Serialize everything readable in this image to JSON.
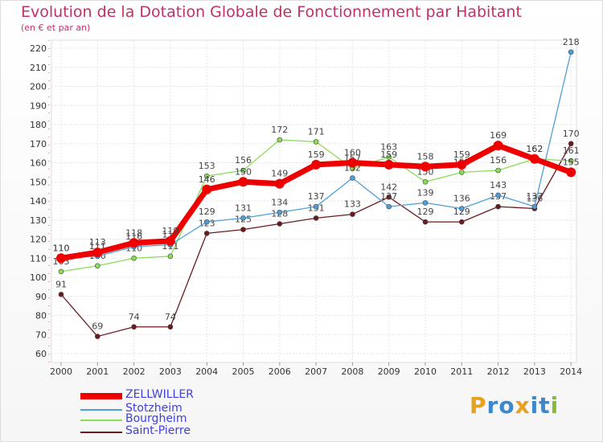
{
  "chart_data": {
    "type": "line",
    "title": "Evolution de la Dotation Globale de Fonctionnement par Habitant",
    "subtitle": "(en € et par an)",
    "xlabel": "",
    "ylabel": "",
    "ylim": [
      60,
      220
    ],
    "yticks": [
      60,
      70,
      80,
      90,
      100,
      110,
      120,
      130,
      140,
      150,
      160,
      170,
      180,
      190,
      200,
      210,
      220
    ],
    "categories": [
      "2000",
      "2001",
      "2002",
      "2003",
      "2004",
      "2005",
      "2006",
      "2007",
      "2008",
      "2009",
      "2010",
      "2011",
      "2012",
      "2013",
      "2014"
    ],
    "series": [
      {
        "name": "Saint-Pierre",
        "color": "#6b1a1f",
        "values": [
          91,
          69,
          74,
          74,
          123,
          125,
          128,
          131,
          133,
          142,
          129,
          129,
          137,
          136,
          170
        ]
      },
      {
        "name": "Bourgheim",
        "color": "#88dd55",
        "values": [
          103,
          106,
          110,
          111,
          153,
          156,
          172,
          171,
          157,
          163,
          150,
          155,
          156,
          162,
          161
        ]
      },
      {
        "name": "Stotzheim",
        "color": "#4f9fd6",
        "values": [
          110,
          111,
          116,
          117,
          129,
          131,
          134,
          137,
          152,
          137,
          139,
          136,
          143,
          137,
          218
        ]
      },
      {
        "name": "ZELLWILLER",
        "color": "#ee0000",
        "values": [
          110,
          113,
          118,
          119,
          146,
          150,
          149,
          159,
          160,
          159,
          158,
          159,
          169,
          162,
          155
        ]
      }
    ],
    "legend": [
      "ZELLWILLER",
      "Stotzheim",
      "Bourgheim",
      "Saint-Pierre"
    ],
    "legend_position": "bottom-left"
  },
  "logo": {
    "letters": [
      "P",
      "r",
      "o",
      "x",
      "i",
      "t",
      "i"
    ],
    "colors": [
      "#e8a020",
      "#3b88cc",
      "#3b88cc",
      "#e8a020",
      "#3b88cc",
      "#3b88cc",
      "#88bb33"
    ]
  }
}
